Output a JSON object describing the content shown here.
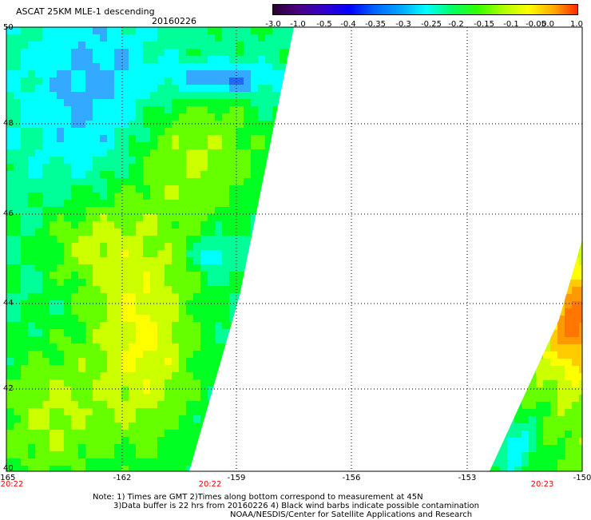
{
  "header": {
    "title": "ASCAT 25KM MLE-1 descending",
    "date": "20160226"
  },
  "colorbar": {
    "labels": [
      "-3.0",
      "-1.0",
      "-0.5",
      "-0.4",
      "-0.35",
      "-0.3",
      "-0.25",
      "-0.2",
      "-0.15",
      "-0.1",
      "-0.05",
      "0.0",
      "1.0"
    ],
    "colors": [
      "#2a0030",
      "#4b0082",
      "#3300cc",
      "#0000ff",
      "#0066ff",
      "#00a6ff",
      "#00ffff",
      "#00ff66",
      "#33ff00",
      "#aaff00",
      "#ffff00",
      "#ffaa00",
      "#ff2200"
    ]
  },
  "map": {
    "lat_labels": [
      "50",
      "48",
      "46",
      "44",
      "42",
      "40"
    ],
    "lon_labels": [
      "-165",
      "-162",
      "-159",
      "-156",
      "-153",
      "-150"
    ],
    "time_labels": [
      "20:22",
      "20:22",
      "20:23"
    ],
    "time_color": "#ff0000",
    "swaths": [
      {
        "name": "western-swath",
        "boundary_lon": [
          -165,
          -158,
          -159,
          -160.2,
          -165
        ],
        "boundary_lat": [
          50,
          50,
          44.2,
          40,
          40
        ]
      },
      {
        "name": "eastern-swath",
        "boundary_lon": [
          -150,
          -150,
          -152.5
        ],
        "boundary_lat": [
          45.2,
          40,
          40
        ]
      }
    ]
  },
  "notes": {
    "line1": "Note: 1) Times are GMT 2)Times along bottom correspond to measurement at 45N",
    "line2": "3)Data buffer is 22 hrs from 20160226 4) Black wind barbs indicate possible contamination",
    "line3": "NOAA/NESDIS/Center for Satellite Applications and Research"
  }
}
